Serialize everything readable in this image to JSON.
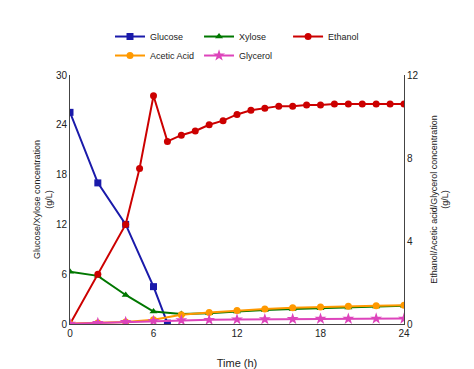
{
  "chart_data": {
    "type": "line",
    "xlabel": "Time (h)",
    "ylabel": "Glucose/Xylose concentration\n(g/L)",
    "y2label": "Ethanol/Acetic acid/Glycerol concentration\n(g/L)",
    "xlim": [
      0,
      24
    ],
    "xticks": [
      0,
      6,
      12,
      18,
      24
    ],
    "ylim": [
      0,
      30
    ],
    "yticks": [
      0,
      6,
      12,
      18,
      24,
      30
    ],
    "y2lim": [
      0,
      12
    ],
    "y2ticks": [
      0,
      4,
      8,
      12
    ],
    "grid": false,
    "legend": "top",
    "series": [
      {
        "name": "Glucose",
        "color": "#1a1aaa",
        "marker": "square",
        "axis": "y",
        "x": [
          0,
          2,
          4,
          6,
          7
        ],
        "values": [
          25.5,
          17.0,
          12.0,
          4.5,
          0.1
        ]
      },
      {
        "name": "Xylose",
        "color": "#007700",
        "marker": "triangle-up",
        "axis": "y",
        "x": [
          0,
          2,
          4,
          6,
          8,
          10,
          12,
          14,
          16,
          18,
          20,
          22,
          24
        ],
        "values": [
          6.3,
          5.8,
          3.5,
          1.5,
          1.2,
          1.3,
          1.5,
          1.7,
          1.8,
          1.9,
          2.0,
          2.1,
          2.2
        ]
      },
      {
        "name": "Ethanol",
        "color": "#cc0000",
        "marker": "circle",
        "axis": "y2",
        "x": [
          0,
          2,
          4,
          5,
          6,
          7,
          8,
          9,
          10,
          11,
          12,
          13,
          14,
          15,
          16,
          17,
          18,
          19,
          20,
          21,
          22,
          23,
          24
        ],
        "values": [
          0.0,
          2.4,
          4.8,
          7.5,
          11.0,
          8.8,
          9.1,
          9.3,
          9.6,
          9.8,
          10.1,
          10.3,
          10.4,
          10.5,
          10.5,
          10.55,
          10.55,
          10.6,
          10.6,
          10.6,
          10.6,
          10.6,
          10.6
        ]
      },
      {
        "name": "Acetic Acid",
        "color": "#ff9900",
        "marker": "circle",
        "axis": "y2",
        "x": [
          0,
          2,
          4,
          6,
          8,
          10,
          12,
          14,
          16,
          18,
          20,
          22,
          24
        ],
        "values": [
          0.02,
          0.05,
          0.1,
          0.2,
          0.45,
          0.55,
          0.65,
          0.72,
          0.78,
          0.82,
          0.86,
          0.88,
          0.9
        ]
      },
      {
        "name": "Glycerol",
        "color": "#dd44bb",
        "marker": "star",
        "axis": "y2",
        "x": [
          0,
          2,
          4,
          6,
          8,
          10,
          12,
          14,
          16,
          18,
          20,
          22,
          24
        ],
        "values": [
          0.01,
          0.05,
          0.1,
          0.15,
          0.18,
          0.2,
          0.22,
          0.23,
          0.24,
          0.25,
          0.25,
          0.26,
          0.26
        ]
      }
    ]
  }
}
